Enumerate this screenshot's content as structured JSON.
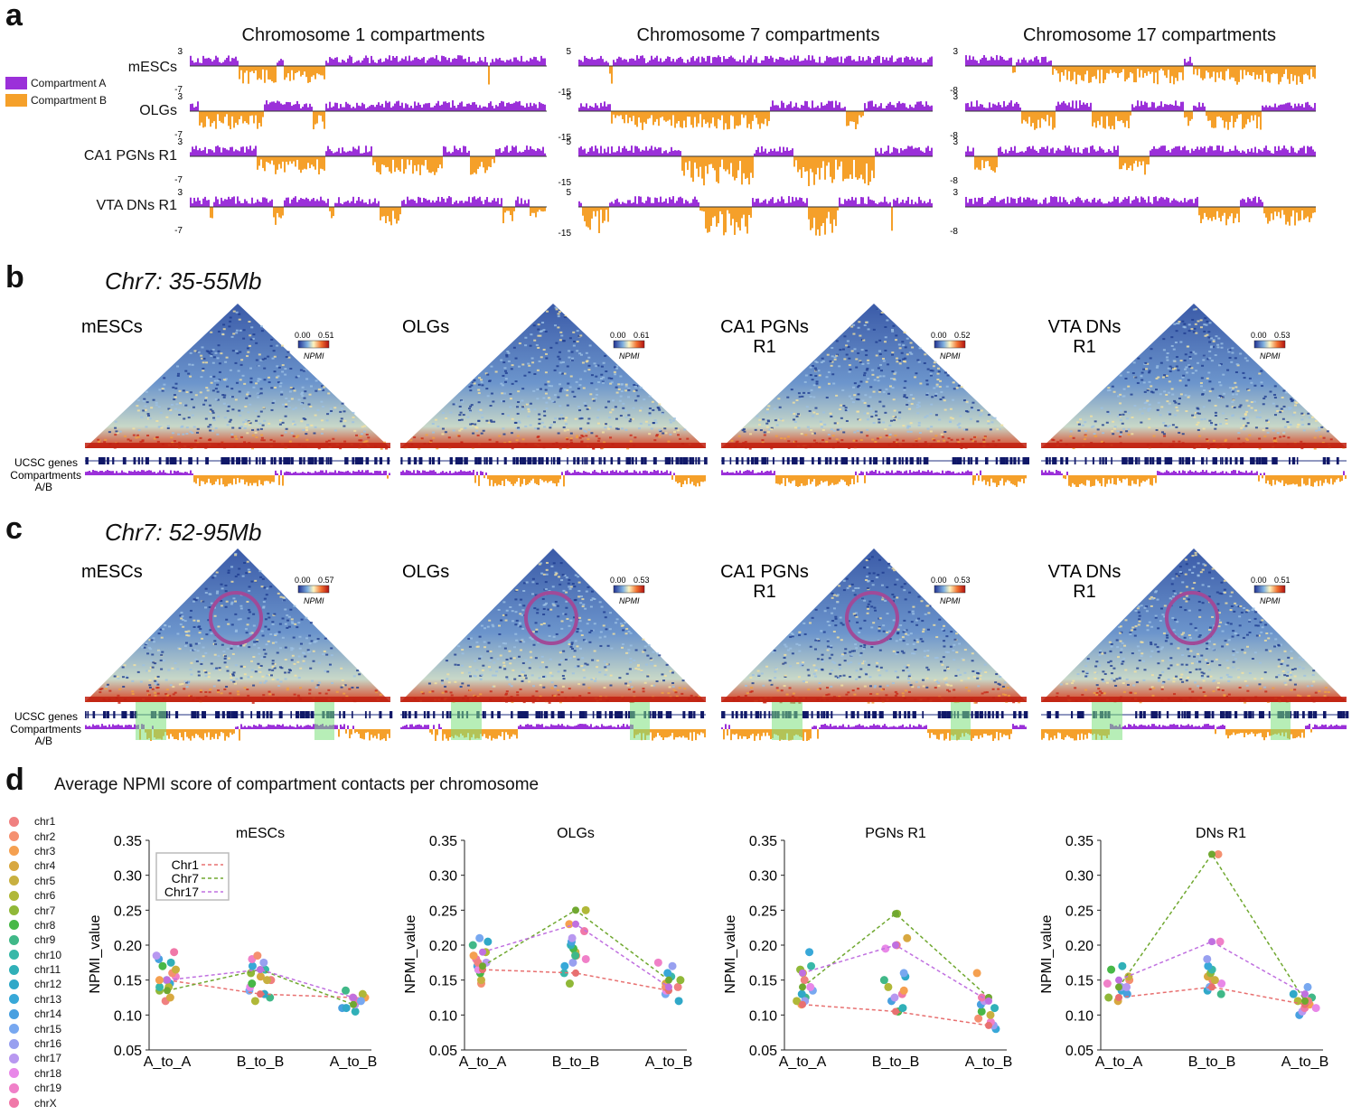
{
  "panel_a": {
    "letter": "a",
    "legend": [
      {
        "label": "Compartment A",
        "color": "#9b30d9"
      },
      {
        "label": "Compartment B",
        "color": "#f5a02a"
      }
    ],
    "row_labels": [
      "mESCs",
      "OLGs",
      "CA1 PGNs R1",
      "VTA DNs R1"
    ],
    "columns": [
      {
        "title": "Chromosome 1 compartments",
        "top_tick": "3",
        "bottom_tick": "-7"
      },
      {
        "title": "Chromosome 7 compartments",
        "top_tick": "5",
        "bottom_tick": "-15"
      },
      {
        "title": "Chromosome 17 compartments",
        "top_tick": "3",
        "bottom_tick": "-8"
      }
    ]
  },
  "panel_b": {
    "letter": "b",
    "region": "Chr7: 35-55Mb",
    "track_labels": [
      "UCSC genes",
      "Compartments",
      "A/B"
    ],
    "maps": [
      {
        "label_lines": [
          "mESCs"
        ],
        "min": "0.00",
        "max": "0.51",
        "unit": "NPMI"
      },
      {
        "label_lines": [
          "OLGs"
        ],
        "min": "0.00",
        "max": "0.61",
        "unit": "NPMI"
      },
      {
        "label_lines": [
          "CA1 PGNs",
          "R1"
        ],
        "min": "0.00",
        "max": "0.52",
        "unit": "NPMI"
      },
      {
        "label_lines": [
          "VTA DNs",
          "R1"
        ],
        "min": "0.00",
        "max": "0.53",
        "unit": "NPMI"
      }
    ]
  },
  "panel_c": {
    "letter": "c",
    "region": "Chr7: 52-95Mb",
    "track_labels": [
      "UCSC genes",
      "Compartments",
      "A/B"
    ],
    "maps": [
      {
        "label_lines": [
          "mESCs"
        ],
        "min": "0.00",
        "max": "0.57",
        "unit": "NPMI"
      },
      {
        "label_lines": [
          "OLGs"
        ],
        "min": "0.00",
        "max": "0.53",
        "unit": "NPMI"
      },
      {
        "label_lines": [
          "CA1 PGNs",
          "R1"
        ],
        "min": "0.00",
        "max": "0.53",
        "unit": "NPMI"
      },
      {
        "label_lines": [
          "VTA DNs",
          "R1"
        ],
        "min": "0.00",
        "max": "0.51",
        "unit": "NPMI"
      }
    ]
  },
  "panel_d": {
    "letter": "d",
    "title": "Average NPMI score of compartment contacts per chromosome",
    "legend_chromosomes": [
      "chr1",
      "chr2",
      "chr3",
      "chr4",
      "chr5",
      "chr6",
      "chr7",
      "chr8",
      "chr9",
      "chr10",
      "chr11",
      "chr12",
      "chr13",
      "chr14",
      "chr15",
      "chr16",
      "chr17",
      "chr18",
      "chr19",
      "chrX"
    ],
    "legend_colors": [
      "#f08080",
      "#f59070",
      "#f5a050",
      "#d8a840",
      "#c8b040",
      "#b0b838",
      "#90b838",
      "#48b848",
      "#40b888",
      "#38b8a8",
      "#30b0b8",
      "#30a8c8",
      "#38a8d8",
      "#48a0e0",
      "#78a8f0",
      "#98a0f0",
      "#b898f0",
      "#e888e8",
      "#f080c8",
      "#f078a8"
    ],
    "inset_legend": [
      {
        "label": "Chr1",
        "color": "#e87070"
      },
      {
        "label": "Chr7",
        "color": "#70a830"
      },
      {
        "label": "Chr17",
        "color": "#c070e0"
      }
    ]
  },
  "chart_data": [
    {
      "type": "scatter",
      "title": "mESCs",
      "ylabel": "NPMI_value",
      "categories": [
        "A_to_A",
        "B_to_B",
        "A_to_B"
      ],
      "ylim": [
        0.05,
        0.35
      ],
      "yticks": [
        "0.05",
        "0.10",
        "0.15",
        "0.20",
        "0.25",
        "0.30",
        "0.35"
      ],
      "series": [
        {
          "name": "Chr1",
          "values": [
            0.15,
            0.13,
            0.125
          ]
        },
        {
          "name": "Chr7",
          "values": [
            0.135,
            0.165,
            0.115
          ]
        },
        {
          "name": "Chr17",
          "values": [
            0.15,
            0.165,
            0.125
          ]
        }
      ],
      "points": [
        [
          0.12,
          0.125,
          0.135,
          0.14,
          0.145,
          0.15,
          0.155,
          0.16,
          0.165,
          0.17,
          0.175,
          0.18,
          0.185,
          0.19,
          0.15,
          0.14
        ],
        [
          0.12,
          0.125,
          0.13,
          0.135,
          0.14,
          0.15,
          0.155,
          0.16,
          0.165,
          0.17,
          0.175,
          0.18,
          0.185,
          0.15,
          0.145
        ],
        [
          0.105,
          0.11,
          0.115,
          0.12,
          0.125,
          0.13,
          0.135,
          0.11,
          0.12,
          0.125
        ]
      ]
    },
    {
      "type": "scatter",
      "title": "OLGs",
      "ylabel": "NPMI_value",
      "categories": [
        "A_to_A",
        "B_to_B",
        "A_to_B"
      ],
      "ylim": [
        0.05,
        0.35
      ],
      "yticks": [
        "0.05",
        "0.10",
        "0.15",
        "0.20",
        "0.25",
        "0.30",
        "0.35"
      ],
      "series": [
        {
          "name": "Chr1",
          "values": [
            0.165,
            0.16,
            0.135
          ]
        },
        {
          "name": "Chr7",
          "values": [
            0.17,
            0.25,
            0.15
          ]
        },
        {
          "name": "Chr17",
          "values": [
            0.19,
            0.23,
            0.14
          ]
        }
      ],
      "points": [
        [
          0.145,
          0.15,
          0.16,
          0.165,
          0.17,
          0.175,
          0.18,
          0.185,
          0.19,
          0.2,
          0.205,
          0.21,
          0.165,
          0.175
        ],
        [
          0.145,
          0.16,
          0.17,
          0.175,
          0.18,
          0.185,
          0.19,
          0.195,
          0.2,
          0.205,
          0.21,
          0.22,
          0.23,
          0.25,
          0.185
        ],
        [
          0.12,
          0.13,
          0.135,
          0.14,
          0.145,
          0.15,
          0.155,
          0.16,
          0.17,
          0.175,
          0.14
        ]
      ]
    },
    {
      "type": "scatter",
      "title": "PGNs R1",
      "ylabel": "NPMI_value",
      "categories": [
        "A_to_A",
        "B_to_B",
        "A_to_B"
      ],
      "ylim": [
        0.05,
        0.35
      ],
      "yticks": [
        "0.05",
        "0.10",
        "0.15",
        "0.20",
        "0.25",
        "0.30",
        "0.35"
      ],
      "series": [
        {
          "name": "Chr1",
          "values": [
            0.115,
            0.105,
            0.085
          ]
        },
        {
          "name": "Chr7",
          "values": [
            0.14,
            0.245,
            0.125
          ]
        },
        {
          "name": "Chr17",
          "values": [
            0.16,
            0.2,
            0.12
          ]
        }
      ],
      "points": [
        [
          0.115,
          0.12,
          0.125,
          0.13,
          0.135,
          0.14,
          0.15,
          0.16,
          0.165,
          0.17,
          0.19,
          0.12
        ],
        [
          0.105,
          0.11,
          0.12,
          0.125,
          0.13,
          0.135,
          0.14,
          0.15,
          0.155,
          0.16,
          0.195,
          0.2,
          0.21,
          0.245
        ],
        [
          0.08,
          0.085,
          0.09,
          0.095,
          0.1,
          0.105,
          0.11,
          0.115,
          0.12,
          0.125,
          0.16
        ]
      ]
    },
    {
      "type": "scatter",
      "title": "DNs R1",
      "ylabel": "NPMI_value",
      "categories": [
        "A_to_A",
        "B_to_B",
        "A_to_B"
      ],
      "ylim": [
        0.05,
        0.35
      ],
      "yticks": [
        "0.05",
        "0.10",
        "0.15",
        "0.20",
        "0.25",
        "0.30",
        "0.35"
      ],
      "series": [
        {
          "name": "Chr1",
          "values": [
            0.125,
            0.14,
            0.115
          ]
        },
        {
          "name": "Chr7",
          "values": [
            0.14,
            0.33,
            0.12
          ]
        },
        {
          "name": "Chr17",
          "values": [
            0.15,
            0.205,
            0.13
          ]
        }
      ],
      "points": [
        [
          0.12,
          0.125,
          0.13,
          0.135,
          0.14,
          0.145,
          0.15,
          0.155,
          0.165,
          0.17,
          0.13,
          0.14
        ],
        [
          0.13,
          0.135,
          0.14,
          0.145,
          0.15,
          0.155,
          0.16,
          0.165,
          0.17,
          0.18,
          0.205,
          0.33,
          0.15
        ],
        [
          0.1,
          0.105,
          0.11,
          0.115,
          0.12,
          0.125,
          0.13,
          0.14,
          0.11,
          0.12
        ]
      ]
    }
  ]
}
